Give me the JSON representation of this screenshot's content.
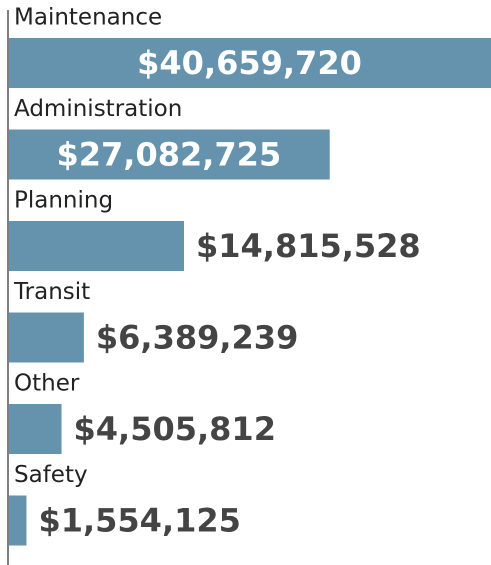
{
  "chart_data": {
    "type": "bar",
    "orientation": "horizontal",
    "categories": [
      "Maintenance",
      "Administration",
      "Planning",
      "Transit",
      "Other",
      "Safety"
    ],
    "values": [
      40659720,
      27082725,
      14815528,
      6389239,
      4505812,
      1554125
    ],
    "value_labels": [
      "$40,659,720",
      "$27,082,725",
      "$14,815,528",
      "$6,389,239",
      "$4,505,812",
      "$1,554,125"
    ],
    "color": "#6593ae"
  }
}
